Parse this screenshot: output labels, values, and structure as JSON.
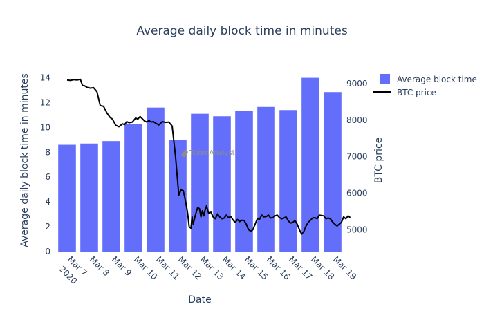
{
  "chart_data": {
    "type": "bar",
    "title": "Average daily block time in minutes",
    "xlabel": "Date",
    "ylabel": "Average daily block time in minutes",
    "y2label": "BTC price",
    "categories": [
      "Mar 7",
      "Mar 8",
      "Mar 9",
      "Mar 10",
      "Mar 11",
      "Mar 12",
      "Mar 13",
      "Mar 14",
      "Mar 15",
      "Mar 16",
      "Mar 17",
      "Mar 18",
      "Mar 19"
    ],
    "year_label": "2020",
    "ylim": [
      0,
      14.7
    ],
    "yticks": [
      0,
      2,
      4,
      6,
      8,
      10,
      12,
      14
    ],
    "y2lim": [
      4400,
      9400
    ],
    "y2ticks": [
      5000,
      6000,
      7000,
      8000,
      9000
    ],
    "grid": false,
    "legend_position": "top-right",
    "watermark": "TokenAnalyst",
    "series": [
      {
        "name": "Average block time",
        "type": "bar",
        "axis": "left",
        "color": "#636efa",
        "values": [
          8.6,
          8.7,
          8.9,
          10.3,
          11.6,
          9.0,
          11.1,
          10.9,
          11.35,
          11.65,
          11.4,
          14.0,
          12.85
        ]
      },
      {
        "name": "BTC price",
        "type": "line",
        "axis": "right",
        "color": "#000000",
        "x": [
          0.0,
          0.15,
          0.3,
          0.45,
          0.6,
          0.7,
          0.8,
          0.9,
          1.05,
          1.2,
          1.35,
          1.5,
          1.65,
          1.8,
          1.95,
          2.05,
          2.2,
          2.35,
          2.5,
          2.6,
          2.7,
          2.8,
          2.95,
          3.1,
          3.2,
          3.3,
          3.4,
          3.5,
          3.6,
          3.7,
          3.8,
          3.9,
          4.0,
          4.15,
          4.3,
          4.45,
          4.6,
          4.75,
          4.9,
          5.05,
          5.15,
          5.25,
          5.35,
          5.45,
          5.52,
          5.6,
          5.65,
          5.7,
          5.8,
          5.9,
          5.98,
          6.05,
          6.12,
          6.18,
          6.23,
          6.3,
          6.4,
          6.5,
          6.6,
          6.7,
          6.8,
          6.9,
          7.0,
          7.1,
          7.2,
          7.3,
          7.4,
          7.5,
          7.6,
          7.7,
          7.8,
          7.9,
          8.0,
          8.1,
          8.2,
          8.3,
          8.4,
          8.5,
          8.6,
          8.7,
          8.8,
          8.9,
          9.0,
          9.1,
          9.2,
          9.3,
          9.4,
          9.5,
          9.6,
          9.7,
          9.8,
          9.9,
          10.0,
          10.1,
          10.2,
          10.3,
          10.4,
          10.5,
          10.6,
          10.7,
          10.8,
          10.9,
          11.0,
          11.1,
          11.2,
          11.3,
          11.4,
          11.5,
          11.6,
          11.7,
          11.8,
          11.9,
          12.0,
          12.1,
          12.2,
          12.3,
          12.4,
          12.5,
          12.6,
          12.7,
          12.8
        ],
        "values": [
          9100,
          9090,
          9110,
          9100,
          9120,
          8950,
          8940,
          8900,
          8880,
          8890,
          8780,
          8400,
          8380,
          8200,
          8070,
          8030,
          7860,
          7820,
          7900,
          7880,
          7960,
          7930,
          7950,
          8060,
          8030,
          8100,
          8040,
          7980,
          7950,
          7990,
          7950,
          7960,
          7920,
          7870,
          7960,
          7940,
          7950,
          7840,
          7020,
          5950,
          6090,
          6070,
          5800,
          5450,
          5080,
          5040,
          5350,
          5150,
          5400,
          5600,
          5580,
          5350,
          5520,
          5380,
          5520,
          5650,
          5450,
          5480,
          5350,
          5300,
          5430,
          5350,
          5300,
          5320,
          5400,
          5330,
          5360,
          5270,
          5200,
          5280,
          5220,
          5260,
          5250,
          5150,
          5000,
          4960,
          5000,
          5150,
          5300,
          5290,
          5400,
          5350,
          5360,
          5400,
          5320,
          5330,
          5380,
          5400,
          5330,
          5300,
          5320,
          5350,
          5240,
          5180,
          5200,
          5250,
          5150,
          5000,
          4880,
          4950,
          5100,
          5200,
          5260,
          5320,
          5330,
          5300,
          5400,
          5390,
          5380,
          5300,
          5320,
          5300,
          5210,
          5150,
          5100,
          5150,
          5200,
          5350,
          5300,
          5380,
          5330
        ]
      }
    ]
  }
}
